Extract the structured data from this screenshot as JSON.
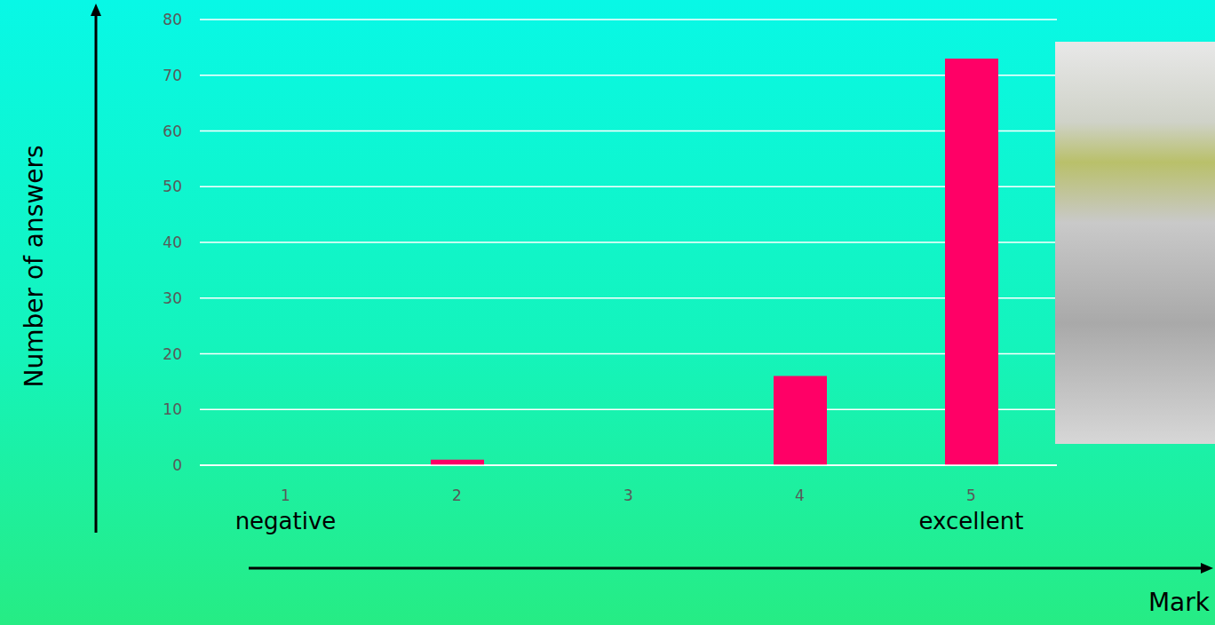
{
  "chart_data": {
    "type": "bar",
    "categories": [
      "1",
      "2",
      "3",
      "4",
      "5"
    ],
    "values": [
      0,
      1,
      0,
      16,
      73
    ],
    "color": "#ff0066",
    "ylim": [
      0,
      80
    ],
    "yticks": [
      0,
      10,
      20,
      30,
      40,
      50,
      60,
      70,
      80
    ],
    "grid": true,
    "x_label": "Mark",
    "y_label": "Number of answers",
    "annotations": [
      {
        "text": "negative",
        "category": "1"
      },
      {
        "text": "excellent",
        "category": "5"
      }
    ]
  }
}
